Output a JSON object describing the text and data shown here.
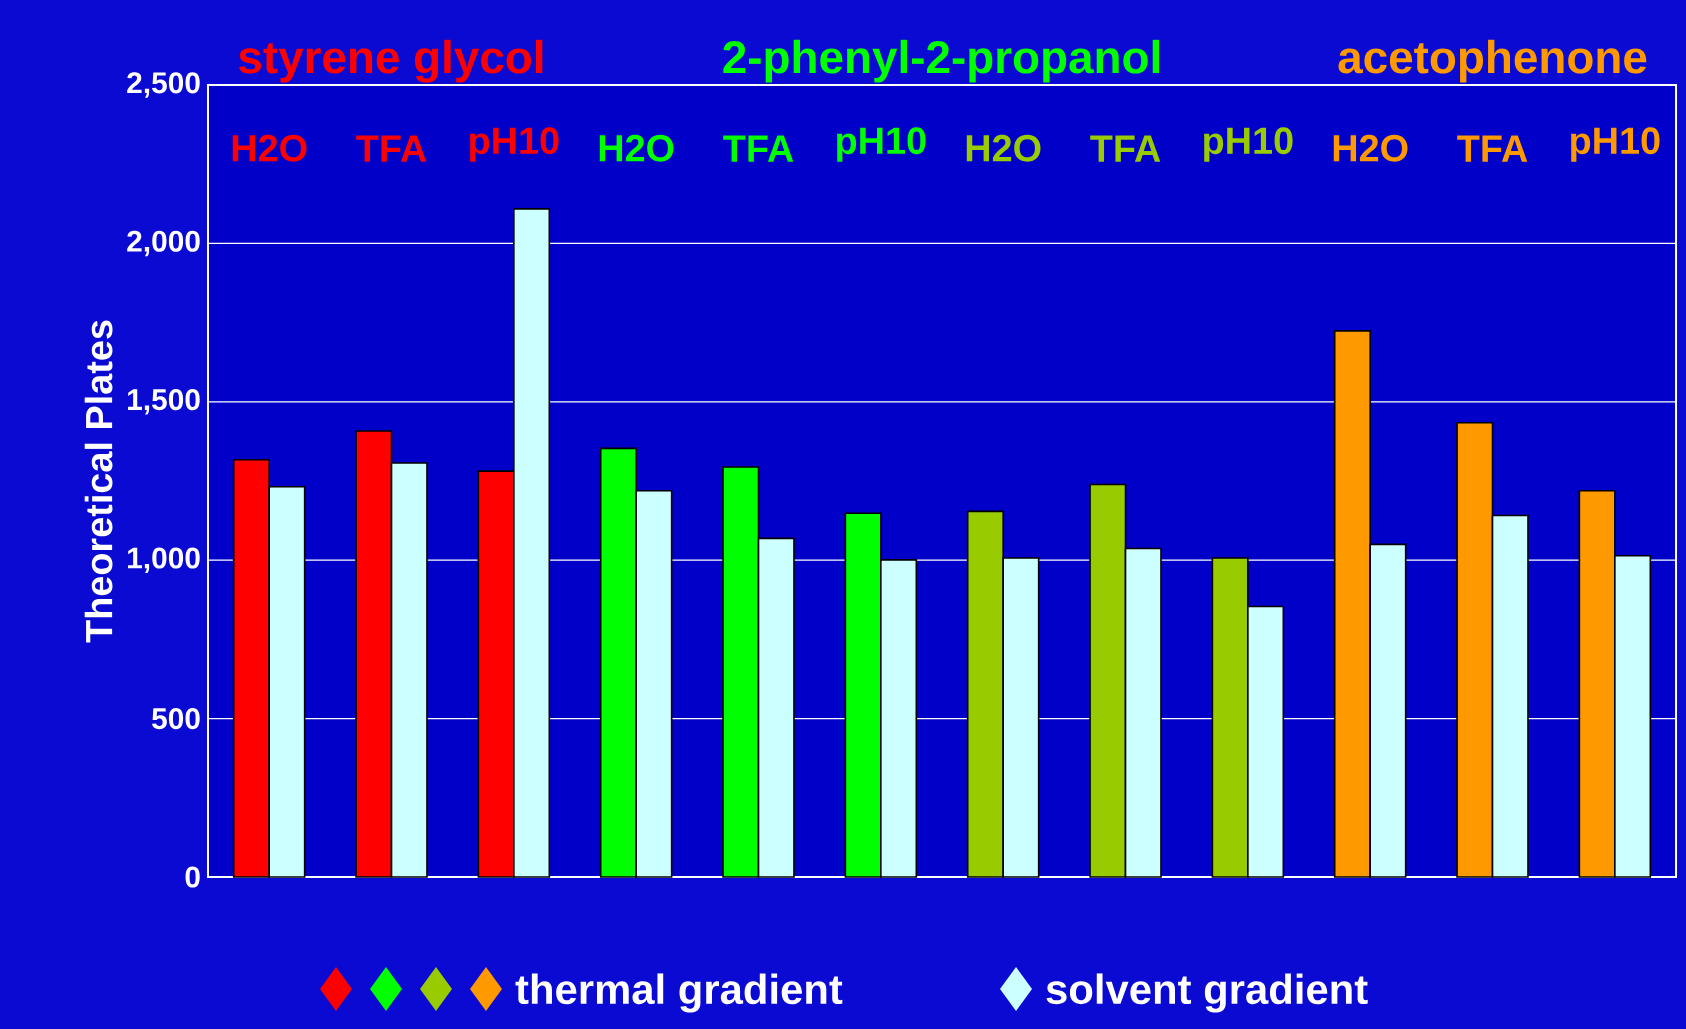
{
  "chart_data": {
    "type": "bar",
    "ylabel": "Theoretical Plates",
    "categories": [
      "H2O",
      "TFA",
      "pH10",
      "H2O",
      "TFA",
      "pH10",
      "H2O",
      "TFA",
      "pH10",
      "H2O",
      "TFA",
      "pH10"
    ],
    "series": [
      {
        "name": "thermal gradient",
        "colors": [
          "#ff0000",
          "#ff0000",
          "#ff0000",
          "#00ff00",
          "#00ff00",
          "#00ff00",
          "#99cc00",
          "#99cc00",
          "#99cc00",
          "#ff9900",
          "#ff9900",
          "#ff9900"
        ],
        "values": [
          1317,
          1408,
          1281,
          1353,
          1294,
          1148,
          1154,
          1239,
          1007,
          1724,
          1434,
          1219
        ]
      },
      {
        "name": "solvent gradient",
        "color": "#ccffff",
        "values": [
          1232,
          1307,
          2109,
          1219,
          1069,
          1001,
          1007,
          1037,
          854,
          1050,
          1141,
          1014
        ]
      }
    ],
    "annotations": [
      "styrene glycol",
      "2-phenyl-2-propanol",
      "acetophenone"
    ],
    "ylim": [
      0,
      2500
    ],
    "yticks": [
      {
        "value": 0,
        "label": "0"
      },
      {
        "value": 500,
        "label": "500"
      },
      {
        "value": 1000,
        "label": "1,000"
      },
      {
        "value": 1500,
        "label": "1,500"
      },
      {
        "value": 2000,
        "label": "2,000"
      },
      {
        "value": 2500,
        "label": "2,500"
      }
    ],
    "grid": "y",
    "legend": "bottom"
  }
}
